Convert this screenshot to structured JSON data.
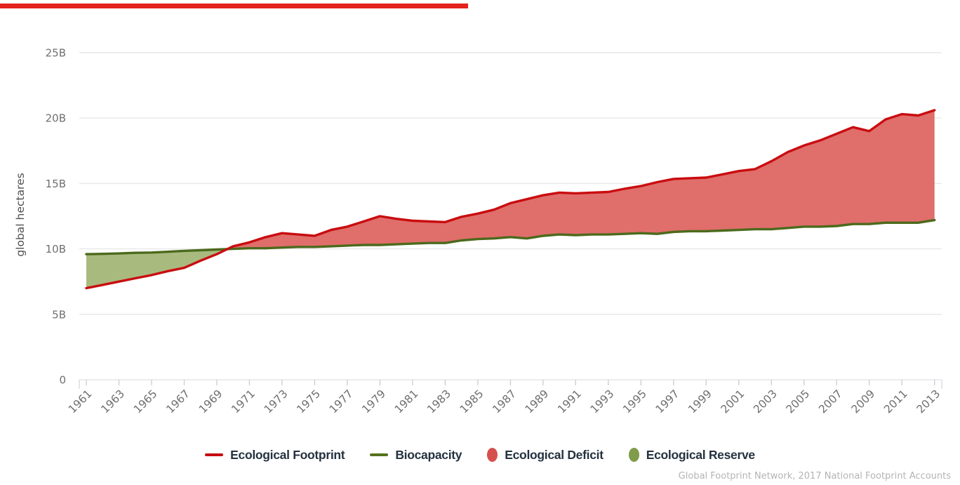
{
  "page": {
    "loading_bar": {
      "visible": true,
      "color": "#e3231c"
    }
  },
  "chart_data": {
    "type": "area",
    "title": "",
    "xlabel": "",
    "ylabel": "global hectares",
    "ylim": [
      0,
      25
    ],
    "grid": true,
    "legend_position": "bottom",
    "yticks": [
      {
        "value": 0,
        "label": "0"
      },
      {
        "value": 5,
        "label": "5B"
      },
      {
        "value": 10,
        "label": "10B"
      },
      {
        "value": 15,
        "label": "15B"
      },
      {
        "value": 20,
        "label": "20B"
      },
      {
        "value": 25,
        "label": "25B"
      }
    ],
    "xticks": [
      1961,
      1963,
      1965,
      1967,
      1969,
      1971,
      1973,
      1975,
      1977,
      1979,
      1981,
      1983,
      1985,
      1987,
      1989,
      1991,
      1993,
      1995,
      1997,
      1999,
      2001,
      2003,
      2005,
      2007,
      2009,
      2011,
      2013
    ],
    "years": [
      1961,
      1962,
      1963,
      1964,
      1965,
      1966,
      1967,
      1968,
      1969,
      1970,
      1971,
      1972,
      1973,
      1974,
      1975,
      1976,
      1977,
      1978,
      1979,
      1980,
      1981,
      1982,
      1983,
      1984,
      1985,
      1986,
      1987,
      1988,
      1989,
      1990,
      1991,
      1992,
      1993,
      1994,
      1995,
      1996,
      1997,
      1998,
      1999,
      2000,
      2001,
      2002,
      2003,
      2004,
      2005,
      2006,
      2007,
      2008,
      2009,
      2010,
      2011,
      2012,
      2013
    ],
    "series": [
      {
        "name": "Ecological Footprint",
        "color": "#c90d10",
        "values": [
          7.0,
          7.25,
          7.5,
          7.75,
          8.0,
          8.3,
          8.55,
          9.1,
          9.6,
          10.2,
          10.5,
          10.9,
          11.2,
          11.1,
          11.0,
          11.45,
          11.7,
          12.1,
          12.5,
          12.3,
          12.15,
          12.1,
          12.05,
          12.45,
          12.7,
          13.0,
          13.5,
          13.8,
          14.1,
          14.3,
          14.25,
          14.3,
          14.35,
          14.6,
          14.8,
          15.1,
          15.35,
          15.4,
          15.45,
          15.7,
          15.95,
          16.1,
          16.7,
          17.4,
          17.9,
          18.3,
          18.8,
          19.3,
          19.0,
          19.9,
          20.3,
          20.2,
          20.6
        ]
      },
      {
        "name": "Biocapacity",
        "color": "#4c6a1c",
        "values": [
          9.6,
          9.62,
          9.65,
          9.7,
          9.72,
          9.78,
          9.85,
          9.9,
          9.95,
          10.0,
          10.05,
          10.05,
          10.1,
          10.15,
          10.15,
          10.2,
          10.25,
          10.3,
          10.3,
          10.35,
          10.4,
          10.45,
          10.45,
          10.65,
          10.75,
          10.8,
          10.9,
          10.8,
          11.0,
          11.1,
          11.05,
          11.1,
          11.1,
          11.15,
          11.2,
          11.15,
          11.3,
          11.35,
          11.35,
          11.4,
          11.45,
          11.5,
          11.5,
          11.6,
          11.7,
          11.7,
          11.75,
          11.9,
          11.9,
          12.0,
          12.0,
          12.0,
          12.2
        ]
      }
    ],
    "fills": [
      {
        "name": "Ecological Deficit",
        "color": "#e06e6b"
      },
      {
        "name": "Ecological Reserve",
        "color": "#a9ba7f"
      }
    ],
    "colors": {
      "gridline": "#e7e7e7",
      "axis_domain": "#d9dce0",
      "tick_mark": "#c7d1de",
      "tick_label": "#6f6f6f",
      "axis_title": "#4f4f4f"
    }
  },
  "legend": {
    "items": [
      {
        "label": "Ecological Footprint",
        "marker": "line",
        "color": "#c60d10"
      },
      {
        "label": "Biocapacity",
        "marker": "line",
        "color": "#55721d"
      },
      {
        "label": "Ecological Deficit",
        "marker": "circle",
        "color": "#d5504d"
      },
      {
        "label": "Ecological Reserve",
        "marker": "circle",
        "color": "#7f9b4b"
      }
    ]
  },
  "footer": {
    "attribution": "Global Footprint Network, 2017 National Footprint Accounts"
  }
}
